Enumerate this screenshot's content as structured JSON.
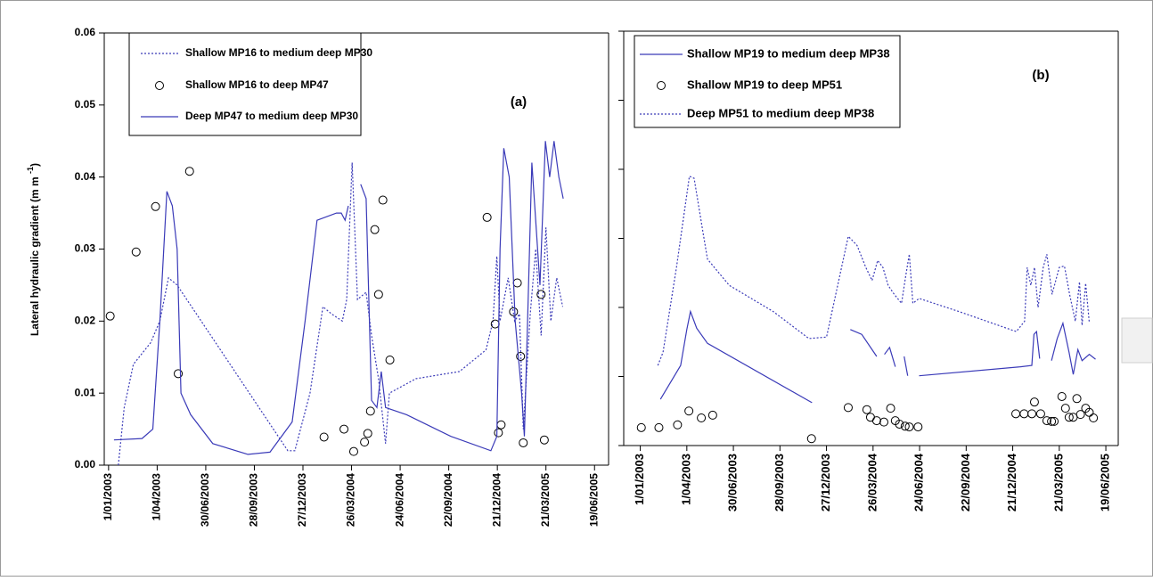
{
  "chart_data": [
    {
      "type": "line",
      "annotation": "(a)",
      "ylabel": {
        "text": "Lateral hydraulic gradient (m m ",
        "superscript": "-1",
        "suffix": ")"
      },
      "xlim": [
        "2002-12-24",
        "2005-07-15"
      ],
      "ylim": [
        0,
        0.06
      ],
      "yticks": [
        {
          "value": 0,
          "label": "0.00"
        },
        {
          "value": 0.01,
          "label": "0.01"
        },
        {
          "value": 0.02,
          "label": "0.02"
        },
        {
          "value": 0.03,
          "label": "0.03"
        },
        {
          "value": 0.04,
          "label": "0.04"
        },
        {
          "value": 0.05,
          "label": "0.05"
        },
        {
          "value": 0.06,
          "label": "0.06"
        }
      ],
      "ytick_labels": true,
      "xticks": [
        {
          "value": "2003-01-01",
          "label": "1/01/2003"
        },
        {
          "value": "2003-04-01",
          "label": "1/04/2003"
        },
        {
          "value": "2003-06-30",
          "label": "30/06/2003"
        },
        {
          "value": "2003-09-28",
          "label": "28/09/2003"
        },
        {
          "value": "2003-12-27",
          "label": "27/12/2003"
        },
        {
          "value": "2004-03-26",
          "label": "26/03/2004"
        },
        {
          "value": "2004-06-24",
          "label": "24/06/2004"
        },
        {
          "value": "2004-09-22",
          "label": "22/09/2004"
        },
        {
          "value": "2004-12-21",
          "label": "21/12/2004"
        },
        {
          "value": "2005-03-21",
          "label": "21/03/2005"
        },
        {
          "value": "2005-06-19",
          "label": "19/06/2005"
        }
      ],
      "series": [
        {
          "name": "Shallow MP16 to medium deep MP30",
          "style": "dotted",
          "color": "#3a3ab8",
          "x": [
            "2003-01-19",
            "2003-01-30",
            "2003-02-16",
            "2003-03-20",
            "2003-04-06",
            "2003-04-22",
            "2003-05-08",
            "2003-08-14",
            "2003-11-29",
            "2003-12-12",
            "2004-01-09",
            "2004-02-02",
            "2004-02-18",
            "2004-03-09",
            "2004-03-17",
            "2004-03-27",
            "2004-04-06",
            "2004-04-22",
            "2004-05-02",
            "2004-05-15",
            "2004-05-28",
            "2004-06-04",
            "2004-07-23",
            "2004-10-12",
            "2004-11-30",
            "2004-12-13",
            "2004-12-20",
            "2004-12-26",
            "2005-01-10",
            "2005-01-22",
            "2005-01-31",
            "2005-02-07",
            "2005-02-20",
            "2005-03-02",
            "2005-03-12",
            "2005-03-21",
            "2005-03-30",
            "2005-04-10",
            "2005-04-21"
          ],
          "values": [
            0.0,
            0.008,
            0.014,
            0.017,
            0.02,
            0.026,
            0.025,
            0.014,
            0.002,
            0.002,
            0.01,
            0.022,
            0.021,
            0.02,
            0.023,
            0.042,
            0.023,
            0.024,
            0.018,
            0.012,
            0.003,
            0.01,
            0.012,
            0.013,
            0.016,
            0.02,
            0.029,
            0.02,
            0.026,
            0.02,
            0.021,
            0.005,
            0.021,
            0.03,
            0.018,
            0.033,
            0.02,
            0.026,
            0.022
          ]
        },
        {
          "name": "Shallow MP16 to deep MP47",
          "style": "markers",
          "color": "#000000",
          "x": [
            "2003-01-04",
            "2003-02-21",
            "2003-03-29",
            "2003-05-10",
            "2003-05-31",
            "2004-02-04",
            "2004-03-12",
            "2004-03-30",
            "2004-04-19",
            "2004-04-25",
            "2004-04-30",
            "2004-05-08",
            "2004-05-15",
            "2004-05-23",
            "2004-06-05",
            "2004-12-02",
            "2004-12-17",
            "2004-12-23",
            "2004-12-28",
            "2005-01-20",
            "2005-01-27",
            "2005-02-02",
            "2005-02-07",
            "2005-03-12",
            "2005-03-18"
          ],
          "values": [
            0.0207,
            0.0296,
            0.0359,
            0.0127,
            0.0408,
            0.0039,
            0.005,
            0.0019,
            0.0032,
            0.0044,
            0.0075,
            0.0327,
            0.0237,
            0.0368,
            0.0146,
            0.0344,
            0.0196,
            0.0045,
            0.0056,
            0.0213,
            0.0253,
            0.0151,
            0.0031,
            0.0237,
            0.0035
          ]
        },
        {
          "name": "Deep MP47 to medium deep MP30",
          "style": "solid",
          "color": "#3a3ab8",
          "x": [
            "2003-01-11",
            "2003-03-04",
            "2003-03-24",
            "2003-04-06",
            "2003-04-19",
            "2003-04-29",
            "2003-05-08",
            "2003-05-15",
            "2003-06-02",
            "2003-07-13",
            "2003-09-16",
            "2003-10-27",
            "2003-12-07",
            "2003-12-31",
            "2004-01-22",
            "2004-02-27",
            "2004-03-07",
            "2004-03-14",
            "2004-03-20",
            null,
            "2004-04-12",
            "2004-04-22",
            "2004-05-02",
            "2004-05-12",
            "2004-05-20",
            "2004-05-28",
            "2004-07-06",
            "2004-09-26",
            "2004-12-09",
            "2004-12-20",
            "2004-12-26",
            "2005-01-02",
            "2005-01-12",
            "2005-01-23",
            "2005-02-04",
            "2005-02-09",
            "2005-02-15",
            "2005-02-23",
            "2005-03-02",
            "2005-03-10",
            "2005-03-20",
            "2005-03-28",
            "2005-04-05",
            "2005-04-14",
            "2005-04-22"
          ],
          "values": [
            0.0035,
            0.0037,
            0.005,
            0.02,
            0.038,
            0.036,
            0.03,
            0.01,
            0.007,
            0.003,
            0.0015,
            0.0018,
            0.006,
            0.02,
            0.034,
            0.035,
            0.035,
            0.034,
            0.036,
            null,
            0.039,
            0.037,
            0.009,
            0.008,
            0.013,
            0.008,
            0.007,
            0.004,
            0.002,
            0.004,
            0.03,
            0.044,
            0.04,
            0.02,
            0.01,
            0.004,
            0.02,
            0.042,
            0.034,
            0.025,
            0.045,
            0.04,
            0.045,
            0.04,
            0.037
          ]
        }
      ]
    },
    {
      "type": "line",
      "annotation": "(b)",
      "xlim": [
        "2002-11-30",
        "2005-07-13"
      ],
      "ylim": [
        0,
        0.06
      ],
      "yticks": [
        0,
        0.01,
        0.02,
        0.03,
        0.04,
        0.05,
        0.06
      ],
      "ytick_labels": false,
      "xticks": [
        {
          "value": "2003-01-01",
          "label": "1/01/2003"
        },
        {
          "value": "2003-04-01",
          "label": "1/04/2003"
        },
        {
          "value": "2003-06-30",
          "label": "30/06/2003"
        },
        {
          "value": "2003-09-28",
          "label": "28/09/2003"
        },
        {
          "value": "2003-12-27",
          "label": "27/12/2003"
        },
        {
          "value": "2004-03-26",
          "label": "26/03/2004"
        },
        {
          "value": "2004-06-24",
          "label": "24/06/2004"
        },
        {
          "value": "2004-09-22",
          "label": "22/09/2004"
        },
        {
          "value": "2004-12-21",
          "label": "21/12/2004"
        },
        {
          "value": "2005-03-21",
          "label": "21/03/2005"
        },
        {
          "value": "2005-06-19",
          "label": "19/06/2005"
        }
      ],
      "series": [
        {
          "name": "Shallow MP19 to medium deep MP38",
          "style": "solid",
          "color": "#3a3ab8",
          "x": [
            "2003-02-09",
            "2003-03-20",
            "2003-04-01",
            "2003-04-08",
            "2003-04-20",
            "2003-05-11",
            "2003-11-29",
            null,
            "2004-02-11",
            "2004-03-04",
            "2004-04-02",
            null,
            "2004-04-17",
            "2004-04-27",
            "2004-05-08",
            null,
            "2004-05-25",
            "2004-06-01",
            null,
            "2004-06-23",
            "2005-01-05",
            "2005-01-27",
            "2005-01-31",
            "2005-02-05",
            "2005-02-11",
            null,
            "2005-03-06",
            "2005-03-17",
            "2005-03-28",
            "2005-04-09",
            "2005-04-17",
            "2005-04-26",
            "2005-05-04",
            "2005-05-18",
            "2005-05-30"
          ],
          "values": [
            0.0067,
            0.0116,
            0.0168,
            0.0194,
            0.017,
            0.0148,
            0.0062,
            null,
            0.0168,
            0.0161,
            0.0129,
            null,
            0.0132,
            0.0142,
            0.0114,
            null,
            0.0129,
            0.0101,
            null,
            0.0101,
            0.0114,
            0.0116,
            0.0161,
            0.0165,
            0.0126,
            null,
            0.0123,
            0.0155,
            0.0177,
            0.0135,
            0.0103,
            0.0139,
            0.0123,
            0.0132,
            0.0125
          ]
        },
        {
          "name": "Shallow MP19 to deep MP51",
          "style": "markers",
          "color": "#000000",
          "x": [
            "2003-01-03",
            "2003-02-06",
            "2003-03-14",
            "2003-04-05",
            "2003-04-29",
            "2003-05-21",
            "2003-11-28",
            "2004-02-07",
            "2004-03-14",
            "2004-03-21",
            "2004-04-02",
            "2004-04-16",
            "2004-04-29",
            "2004-05-08",
            "2004-05-16",
            "2004-05-27",
            "2004-06-04",
            "2004-06-21",
            "2004-12-27",
            "2005-01-12",
            "2005-01-27",
            "2005-02-01",
            "2005-02-13",
            "2005-02-25",
            "2005-03-06",
            "2005-03-11",
            "2005-03-26",
            "2005-04-02",
            "2005-04-09",
            "2005-04-17",
            "2005-04-24",
            "2005-05-01",
            "2005-05-11",
            "2005-05-18",
            "2005-05-26"
          ],
          "values": [
            0.0026,
            0.0026,
            0.003,
            0.005,
            0.004,
            0.0044,
            0.001,
            0.0055,
            0.0052,
            0.0041,
            0.0036,
            0.0034,
            0.0054,
            0.0036,
            0.0031,
            0.0028,
            0.0027,
            0.0027,
            0.0046,
            0.0046,
            0.0046,
            0.0063,
            0.0046,
            0.0036,
            0.0035,
            0.0035,
            0.0071,
            0.0054,
            0.0041,
            0.0041,
            0.0068,
            0.0045,
            0.0054,
            0.0048,
            0.004
          ]
        },
        {
          "name": "Deep MP51 to medium deep MP38",
          "style": "dotted",
          "color": "#3a3ab8",
          "x": [
            "2003-02-04",
            "2003-02-14",
            "2003-03-12",
            "2003-03-29",
            "2003-04-06",
            "2003-04-15",
            "2003-05-02",
            "2003-05-11",
            "2003-06-22",
            "2003-09-15",
            "2003-11-23",
            "2003-12-27",
            "2004-02-07",
            "2004-02-24",
            "2004-03-12",
            "2004-03-24",
            "2004-04-04",
            "2004-04-14",
            "2004-04-24",
            "2004-05-06",
            "2004-05-20",
            "2004-05-28",
            "2004-06-04",
            "2004-06-11",
            "2004-06-23",
            "2004-09-08",
            "2004-12-28",
            "2005-01-13",
            "2005-01-18",
            "2005-01-25",
            "2005-02-01",
            "2005-02-08",
            "2005-02-18",
            "2005-02-25",
            "2005-03-07",
            "2005-03-21",
            "2005-03-31",
            "2005-04-10",
            "2005-04-21",
            "2005-04-29",
            "2005-05-04",
            "2005-05-11",
            "2005-05-18"
          ],
          "values": [
            0.0116,
            0.0135,
            0.0258,
            0.0348,
            0.039,
            0.0387,
            0.031,
            0.027,
            0.0232,
            0.0194,
            0.0155,
            0.0157,
            0.0303,
            0.029,
            0.0258,
            0.0239,
            0.0268,
            0.0258,
            0.0232,
            0.0219,
            0.0206,
            0.0245,
            0.0277,
            0.0206,
            0.0213,
            0.0194,
            0.0165,
            0.018,
            0.0258,
            0.0232,
            0.0258,
            0.02,
            0.0258,
            0.0277,
            0.0219,
            0.0258,
            0.026,
            0.0219,
            0.018,
            0.0237,
            0.0174,
            0.0235,
            0.0178
          ]
        }
      ]
    }
  ]
}
